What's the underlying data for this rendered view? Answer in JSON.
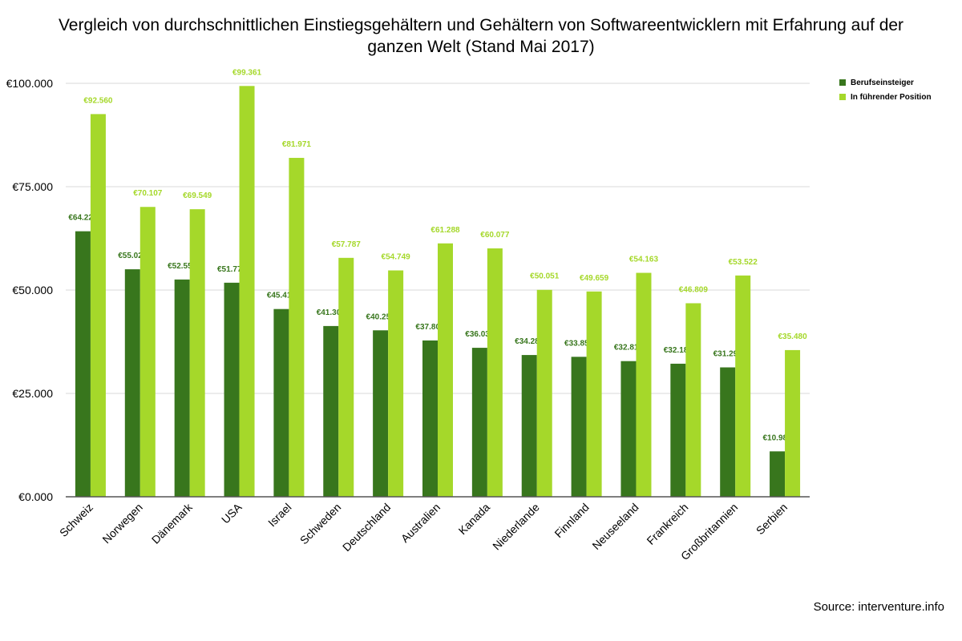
{
  "colors": {
    "series1": "#38761d",
    "series2": "#a5d82a",
    "grid": "#d9d9d9",
    "axis": "#555555"
  },
  "title_line1": "Vergleich von durchschnittlichen Einstiegsgehältern und Gehältern von Softwareentwicklern mit Erfahrung auf der",
  "title_line2": "ganzen Welt (Stand Mai 2017)",
  "source": "Source: interventure.info",
  "chart_data": {
    "type": "bar",
    "title": "Vergleich von durchschnittlichen Einstiegsgehältern und Gehältern von Softwareentwicklern mit Erfahrung auf der ganzen Welt (Stand Mai 2017)",
    "categories": [
      "Schweiz",
      "Norwegen",
      "Dänemark",
      "USA",
      "Israel",
      "Schweden",
      "Deutschland",
      "Australien",
      "Kanada",
      "Niederlande",
      "Finnland",
      "Neuseeland",
      "Frankreich",
      "Großbritannien",
      "Serbien"
    ],
    "series": [
      {
        "name": "Berufseinsteiger",
        "values": [
          64220,
          55024,
          52553,
          51774,
          45410,
          41300,
          40259,
          37809,
          36033,
          34287,
          33851,
          32813,
          32185,
          31296,
          10985
        ],
        "labels": [
          "€64.220",
          "€55.024",
          "€52.553",
          "€51.774",
          "€45.410",
          "€41.300",
          "€40.259",
          "€37.809",
          "€36.033",
          "€34.287",
          "€33.851",
          "€32.813",
          "€32.185",
          "€31.296",
          "€10.985"
        ]
      },
      {
        "name": "In führender Position",
        "values": [
          92560,
          70107,
          69549,
          99361,
          81971,
          57787,
          54749,
          61288,
          60077,
          50051,
          49659,
          54163,
          46809,
          53522,
          35480
        ],
        "labels": [
          "€92.560",
          "€70.107",
          "€69.549",
          "€99.361",
          "€81.971",
          "€57.787",
          "€54.749",
          "€61.288",
          "€60.077",
          "€50.051",
          "€49.659",
          "€54.163",
          "€46.809",
          "€53.522",
          "€35.480"
        ]
      }
    ],
    "yticks": [
      0,
      25000,
      50000,
      75000,
      100000
    ],
    "ytick_labels": [
      "€0.000",
      "€25.000",
      "€50.000",
      "€75.000",
      "€100.000"
    ],
    "ylim": [
      0,
      100000
    ],
    "grid": true,
    "legend_position": "top-right"
  }
}
